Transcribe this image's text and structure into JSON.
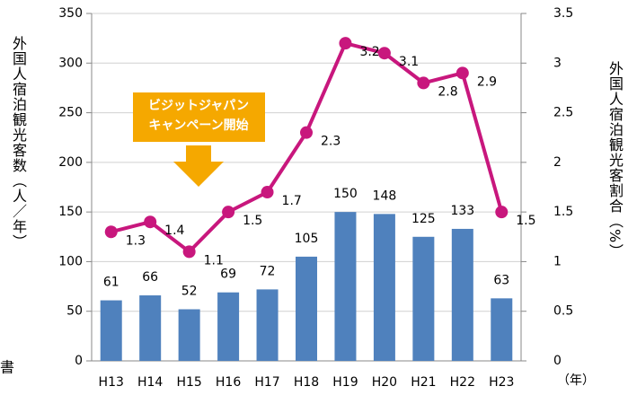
{
  "chart_data": {
    "type": "combo",
    "categories": [
      "H13",
      "H14",
      "H15",
      "H16",
      "H17",
      "H18",
      "H19",
      "H20",
      "H21",
      "H22",
      "H23"
    ],
    "series": [
      {
        "type": "bar",
        "color": "#4f81bd",
        "axis": "y",
        "values": [
          61,
          66,
          52,
          69,
          72,
          105,
          150,
          148,
          125,
          133,
          63
        ]
      },
      {
        "type": "line",
        "color": "#c8177d",
        "axis": "y2",
        "values": [
          1.3,
          1.4,
          1.1,
          1.5,
          1.7,
          2.3,
          3.2,
          3.1,
          2.8,
          2.9,
          1.5
        ]
      }
    ],
    "ylim": [
      0,
      350
    ],
    "yticks": [
      0,
      50,
      100,
      150,
      200,
      250,
      300,
      350
    ],
    "y2lim": [
      0,
      3.5
    ],
    "y2ticks": [
      0,
      0.5,
      1,
      1.5,
      2,
      2.5,
      3,
      3.5
    ],
    "grid": true,
    "y_label": "外国人宿泊観光客数（人／年）",
    "y2_label": "外国人宿泊観光客割合（%）",
    "x_label": "（年）",
    "annotation": [
      "ビジットジャパン",
      "キャンペーン開始"
    ],
    "annotation_color": "#f5a800",
    "side_note": "書"
  }
}
